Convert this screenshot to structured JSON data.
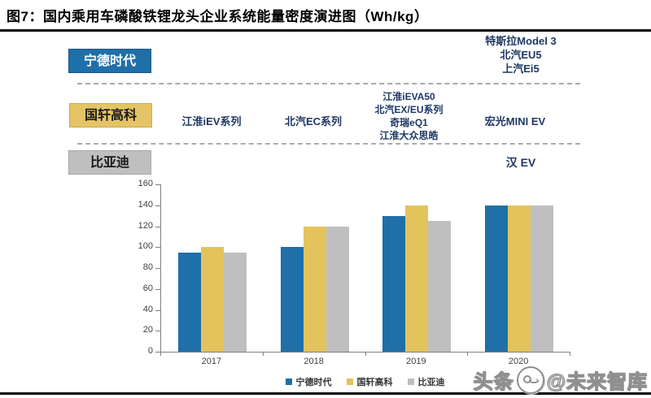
{
  "title": "图7：国内乘用车磷酸铁锂龙头企业系统能量密度演进图（Wh/kg）",
  "companies": {
    "catl": {
      "label": "宁德时代",
      "color": "#1F6FA8"
    },
    "gotion": {
      "label": "国轩高科",
      "color": "#E3C35C"
    },
    "byd": {
      "label": "比亚迪",
      "color": "#BFBFBF"
    }
  },
  "annotations": {
    "catl_2020": [
      "特斯拉Model 3",
      "北汽EU5",
      "上汽Ei5"
    ],
    "gotion_2017": "江淮iEV系列",
    "gotion_2018": "北汽EC系列",
    "gotion_2019": [
      "江淮iEVA50",
      "北汽EX/EU系列",
      "奇瑞eQ1",
      "江淮大众思皓"
    ],
    "gotion_2020": "宏光MINI EV",
    "byd_2020": "汉 EV"
  },
  "chart_data": {
    "type": "bar",
    "title": "国内乘用车磷酸铁锂龙头企业系统能量密度演进图",
    "unit": "Wh/kg",
    "categories": [
      "2017",
      "2018",
      "2019",
      "2020"
    ],
    "series": [
      {
        "name": "宁德时代",
        "color": "#1F6FA8",
        "values": [
          95,
          100,
          130,
          140
        ]
      },
      {
        "name": "国轩高科",
        "color": "#E3C35C",
        "values": [
          100,
          120,
          140,
          140
        ]
      },
      {
        "name": "比亚迪",
        "color": "#BFBFBF",
        "values": [
          95,
          120,
          125,
          140
        ]
      }
    ],
    "ylim": [
      0,
      160
    ],
    "yticks": [
      0,
      20,
      40,
      60,
      80,
      100,
      120,
      140,
      160
    ],
    "grid": false,
    "legend_position": "bottom"
  },
  "watermark": {
    "prefix": "头条",
    "suffix": "@未来智库"
  }
}
